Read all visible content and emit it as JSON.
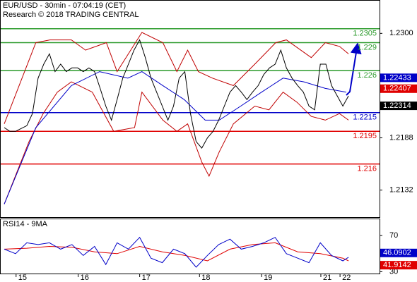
{
  "chart_data": [
    {
      "type": "line",
      "title": "EUR/USD - 30min - 07:04:19 (CET)",
      "subtitle": "Research © 2018 TRADING CENTRAL",
      "xlim": [
        -0.625,
        66.5
      ],
      "ylim": [
        1.2103,
        1.2335
      ],
      "yticks": [
        {
          "value": 1.23,
          "label": "1.2300"
        },
        1.2188,
        1.2132
      ],
      "levels": [
        {
          "value": 1.2305,
          "color": "#2a9a2a"
        },
        {
          "value": 1.229,
          "color": "#2a9a2a"
        },
        {
          "value": 1.226,
          "color": "#2a9a2a"
        },
        {
          "value": 1.2215,
          "color": "#0000c8"
        },
        {
          "value": 1.2195,
          "color": "#e00000"
        },
        {
          "value": 1.216,
          "color": "#e00000"
        }
      ],
      "price_tags": [
        {
          "value": 1.22433,
          "color": "#0000c8"
        },
        {
          "value": 1.22407,
          "color": "#e00000"
        },
        {
          "value": 1.22314,
          "color": "#000000"
        }
      ],
      "series": [
        {
          "color": "#c00000",
          "x": [
            0,
            5.6,
            8.1,
            11.9,
            14.4,
            18.1,
            20,
            24.4,
            28.1,
            30.6,
            32.5,
            34.4,
            36.9,
            40.6,
            44.4,
            48.1,
            50,
            54.4,
            56.9,
            59.4,
            61
          ],
          "values": [
            1.2203,
            1.229,
            1.2293,
            1.2293,
            1.2282,
            1.229,
            1.2259,
            1.2301,
            1.229,
            1.2259,
            1.2282,
            1.2259,
            1.2252,
            1.2244,
            1.2267,
            1.229,
            1.2293,
            1.2274,
            1.229,
            1.2286,
            1.2278
          ]
        },
        {
          "color": "#c00000",
          "x": [
            0,
            4.4,
            6.9,
            9.4,
            11.9,
            15.6,
            19.4,
            23.1,
            24.4,
            28.1,
            30.6,
            32.5,
            35,
            36.3,
            38.1,
            40.6,
            44.4,
            46.9,
            49.4,
            51.9,
            54.4,
            56.9,
            59.4,
            61
          ],
          "values": [
            1.2117,
            1.2184,
            1.2214,
            1.2237,
            1.2248,
            1.2237,
            1.2195,
            1.2199,
            1.2237,
            1.2207,
            1.2195,
            1.2203,
            1.2162,
            1.2147,
            1.2173,
            1.2203,
            1.2222,
            1.2218,
            1.2237,
            1.2226,
            1.2211,
            1.2207,
            1.2214,
            1.2207
          ]
        },
        {
          "color": "#0000c8",
          "x": [
            0,
            5.6,
            11.9,
            16.9,
            21.9,
            24.4,
            28.1,
            31.9,
            35.6,
            38.1,
            41.9,
            45.6,
            49.4,
            53.1,
            56.9,
            60.6
          ],
          "values": [
            1.2117,
            1.2199,
            1.2244,
            1.2259,
            1.2252,
            1.2259,
            1.2244,
            1.2229,
            1.2207,
            1.2207,
            1.2222,
            1.2237,
            1.2252,
            1.2248,
            1.2241,
            1.2237
          ]
        },
        {
          "color": "#000000",
          "x": [
            0,
            1,
            2,
            3,
            4,
            5,
            6,
            7,
            8,
            9,
            10,
            11,
            12,
            13,
            14,
            15,
            16,
            17,
            18,
            19,
            20,
            21,
            22,
            23,
            24,
            25,
            26,
            27,
            28,
            29,
            30,
            31,
            32,
            33,
            34,
            35,
            36,
            37,
            38,
            39,
            40,
            41,
            42,
            43,
            44,
            45,
            46,
            47,
            48,
            49,
            50,
            51,
            52,
            53,
            54,
            55,
            56,
            57,
            58,
            59,
            60,
            61
          ],
          "values": [
            1.2199,
            1.2195,
            1.2195,
            1.2198,
            1.2201,
            1.2214,
            1.2252,
            1.2267,
            1.2278,
            1.2259,
            1.2267,
            1.2259,
            1.2263,
            1.2263,
            1.2259,
            1.2263,
            1.2259,
            1.2241,
            1.2222,
            1.2207,
            1.2229,
            1.2252,
            1.2267,
            1.2282,
            1.2293,
            1.2274,
            1.2252,
            1.2237,
            1.2222,
            1.2207,
            1.2222,
            1.2252,
            1.2259,
            1.2214,
            1.2184,
            1.2177,
            1.2188,
            1.2195,
            1.2207,
            1.2222,
            1.2237,
            1.2244,
            1.2237,
            1.2229,
            1.2237,
            1.2244,
            1.2256,
            1.2263,
            1.2267,
            1.2282,
            1.2263,
            1.2252,
            1.2244,
            1.2237,
            1.2222,
            1.2218,
            1.2267,
            1.2267,
            1.2244,
            1.2233,
            1.2222,
            1.2233
          ]
        }
      ]
    },
    {
      "type": "line",
      "title": "RSI14 - 9MA",
      "xlim": [
        -0.625,
        66.5
      ],
      "ylim": [
        28,
        88
      ],
      "yticks": [
        70,
        30
      ],
      "xticks": [
        {
          "value": 2.1,
          "label": "15"
        },
        {
          "value": 13.1,
          "label": "16"
        },
        {
          "value": 24,
          "label": "17"
        },
        {
          "value": 34.6,
          "label": "18"
        },
        {
          "value": 45.6,
          "label": "19"
        },
        {
          "value": 56.1,
          "label": "21"
        },
        {
          "value": 59.5,
          "label": "22"
        }
      ],
      "price_tags": [
        {
          "value": 46.0902,
          "color": "#0000c8"
        },
        {
          "value": 41.9142,
          "color": "#e00000"
        }
      ],
      "series": [
        {
          "color": "#e00000",
          "x": [
            0,
            4,
            8,
            12,
            16,
            20,
            24,
            28,
            32,
            36,
            40,
            44,
            48,
            52,
            56,
            60,
            61
          ],
          "values": [
            55,
            56,
            58,
            57,
            52,
            50,
            58,
            52,
            48,
            42,
            55,
            60,
            62,
            52,
            50,
            45,
            42
          ]
        },
        {
          "color": "#0000c8",
          "x": [
            0,
            2,
            4,
            6,
            8,
            10,
            12,
            14,
            16,
            18,
            20,
            22,
            24,
            26,
            28,
            30,
            32,
            34,
            36,
            38,
            40,
            42,
            44,
            46,
            48,
            50,
            52,
            54,
            56,
            58,
            60,
            61
          ],
          "values": [
            55,
            50,
            62,
            60,
            62,
            55,
            60,
            48,
            58,
            38,
            62,
            55,
            68,
            45,
            40,
            55,
            50,
            35,
            48,
            60,
            66,
            55,
            58,
            62,
            68,
            50,
            45,
            40,
            62,
            48,
            42,
            46
          ]
        }
      ]
    }
  ]
}
